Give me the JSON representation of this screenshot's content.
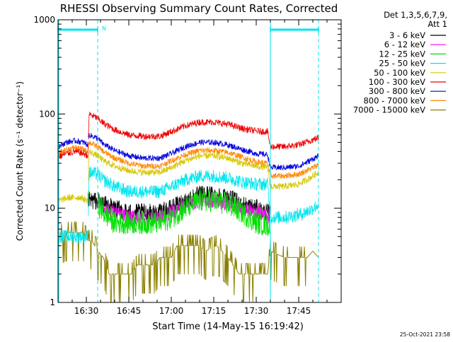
{
  "chart_data": {
    "type": "line",
    "title": "RHESSI Observing Summary Count Rates, Corrected",
    "xlabel": "Start Time (14-May-15 16:19:42)",
    "ylabel": "Corrected Count Rate (s⁻¹ detector⁻¹)",
    "yscale": "log",
    "ylim": [
      1,
      1000
    ],
    "xlim_minutes_after_1620": [
      0,
      100
    ],
    "x_ticks": [
      {
        "label": "16:30",
        "min": 10
      },
      {
        "label": "16:45",
        "min": 25
      },
      {
        "label": "17:00",
        "min": 40
      },
      {
        "label": "17:15",
        "min": 55
      },
      {
        "label": "17:30",
        "min": 70
      },
      {
        "label": "17:45",
        "min": 85
      }
    ],
    "y_ticks": [
      {
        "label": "1",
        "value": 1
      },
      {
        "label": "10",
        "value": 10
      },
      {
        "label": "100",
        "value": 100
      },
      {
        "label": "1000",
        "value": 1000
      }
    ],
    "legend_header": [
      "Det 1,3,5,6,7,9,",
      "Att 1"
    ],
    "legend_position": "top-right, outside plot",
    "timestamp": "25-Oct-2021 23:58",
    "night_marker": "N",
    "night_intervals_min": [
      [
        -1,
        14
      ],
      [
        75,
        92
      ]
    ],
    "vertical_markers_min": [
      {
        "t": 14,
        "style": "dashed"
      },
      {
        "t": 75,
        "style": "solid"
      },
      {
        "t": 92,
        "style": "dashed"
      }
    ],
    "series": [
      {
        "name": "3 - 6 keV",
        "color": "#000000",
        "points": [
          [
            10.5,
            12
          ],
          [
            14,
            12
          ],
          [
            16,
            11
          ],
          [
            20,
            10
          ],
          [
            25,
            9
          ],
          [
            30,
            9
          ],
          [
            36,
            9
          ],
          [
            40,
            10
          ],
          [
            45,
            12
          ],
          [
            50,
            14
          ],
          [
            55,
            14
          ],
          [
            60,
            13
          ],
          [
            65,
            11
          ],
          [
            70,
            10
          ],
          [
            73,
            9
          ],
          [
            75,
            9
          ]
        ]
      },
      {
        "name": "6 - 12 keV",
        "color": "#ff00ff",
        "points": [
          [
            14,
            12
          ],
          [
            16,
            10
          ],
          [
            20,
            9
          ],
          [
            25,
            8
          ],
          [
            30,
            8
          ],
          [
            36,
            8
          ],
          [
            40,
            9
          ],
          [
            45,
            11
          ],
          [
            50,
            12
          ],
          [
            55,
            12
          ],
          [
            60,
            11
          ],
          [
            65,
            10
          ],
          [
            70,
            9
          ],
          [
            75,
            8
          ]
        ]
      },
      {
        "name": "12 - 25 keV",
        "color": "#00e000",
        "points": [
          [
            14,
            11
          ],
          [
            16,
            9
          ],
          [
            20,
            7
          ],
          [
            25,
            7
          ],
          [
            30,
            7
          ],
          [
            36,
            7
          ],
          [
            40,
            8
          ],
          [
            45,
            10
          ],
          [
            50,
            12
          ],
          [
            55,
            12
          ],
          [
            60,
            11
          ],
          [
            65,
            9
          ],
          [
            70,
            7
          ],
          [
            75,
            6.5
          ]
        ]
      },
      {
        "name": "25 - 50 keV",
        "color": "#00e5ee",
        "points": [
          [
            0,
            5
          ],
          [
            3,
            5
          ],
          [
            6,
            5
          ],
          [
            9,
            5
          ],
          [
            10.5,
            5
          ],
          [
            11,
            24
          ],
          [
            14,
            23
          ],
          [
            16,
            20
          ],
          [
            20,
            17
          ],
          [
            25,
            15
          ],
          [
            30,
            15
          ],
          [
            36,
            15
          ],
          [
            40,
            17
          ],
          [
            45,
            20
          ],
          [
            50,
            22
          ],
          [
            55,
            22
          ],
          [
            60,
            21
          ],
          [
            65,
            19
          ],
          [
            70,
            18
          ],
          [
            74,
            18
          ],
          [
            75,
            8
          ],
          [
            80,
            8
          ],
          [
            85,
            8.5
          ],
          [
            89,
            9.5
          ],
          [
            92,
            11
          ]
        ]
      },
      {
        "name": "50 - 100 keV",
        "color": "#d4c800",
        "points": [
          [
            0,
            12
          ],
          [
            4,
            13
          ],
          [
            8,
            13
          ],
          [
            10.5,
            12
          ],
          [
            11,
            40
          ],
          [
            14,
            36
          ],
          [
            16,
            32
          ],
          [
            20,
            28
          ],
          [
            25,
            25
          ],
          [
            30,
            24
          ],
          [
            36,
            24
          ],
          [
            40,
            27
          ],
          [
            45,
            32
          ],
          [
            50,
            36
          ],
          [
            55,
            36
          ],
          [
            60,
            34
          ],
          [
            65,
            30
          ],
          [
            70,
            28
          ],
          [
            74,
            27
          ],
          [
            75,
            17
          ],
          [
            80,
            17
          ],
          [
            85,
            18
          ],
          [
            89,
            21
          ],
          [
            92,
            24
          ]
        ]
      },
      {
        "name": "100 - 300 keV",
        "color": "#ee0000",
        "points": [
          [
            0,
            35
          ],
          [
            3,
            38
          ],
          [
            6,
            40
          ],
          [
            9,
            38
          ],
          [
            10.5,
            36
          ],
          [
            11,
            100
          ],
          [
            14,
            90
          ],
          [
            16,
            80
          ],
          [
            20,
            68
          ],
          [
            25,
            60
          ],
          [
            30,
            58
          ],
          [
            36,
            58
          ],
          [
            40,
            65
          ],
          [
            45,
            75
          ],
          [
            50,
            82
          ],
          [
            55,
            82
          ],
          [
            60,
            78
          ],
          [
            65,
            70
          ],
          [
            70,
            66
          ],
          [
            74,
            65
          ],
          [
            75,
            45
          ],
          [
            80,
            45
          ],
          [
            85,
            47
          ],
          [
            89,
            52
          ],
          [
            92,
            56
          ]
        ]
      },
      {
        "name": "300 - 800 keV",
        "color": "#0000dd",
        "points": [
          [
            0,
            45
          ],
          [
            3,
            50
          ],
          [
            6,
            52
          ],
          [
            9,
            50
          ],
          [
            10.5,
            47
          ],
          [
            11,
            60
          ],
          [
            14,
            55
          ],
          [
            16,
            48
          ],
          [
            20,
            41
          ],
          [
            25,
            36
          ],
          [
            30,
            34
          ],
          [
            36,
            34
          ],
          [
            40,
            38
          ],
          [
            45,
            45
          ],
          [
            50,
            50
          ],
          [
            55,
            50
          ],
          [
            60,
            47
          ],
          [
            65,
            42
          ],
          [
            70,
            38
          ],
          [
            74,
            37
          ],
          [
            75,
            27
          ],
          [
            80,
            27
          ],
          [
            85,
            28
          ],
          [
            89,
            32
          ],
          [
            92,
            36
          ]
        ]
      },
      {
        "name": "800 - 7000 keV",
        "color": "#ff8800",
        "points": [
          [
            0,
            38
          ],
          [
            3,
            42
          ],
          [
            6,
            44
          ],
          [
            9,
            42
          ],
          [
            10.5,
            40
          ],
          [
            11,
            50
          ],
          [
            14,
            45
          ],
          [
            16,
            40
          ],
          [
            20,
            34
          ],
          [
            25,
            30
          ],
          [
            30,
            28
          ],
          [
            36,
            28
          ],
          [
            40,
            32
          ],
          [
            45,
            37
          ],
          [
            50,
            41
          ],
          [
            55,
            41
          ],
          [
            60,
            39
          ],
          [
            65,
            35
          ],
          [
            70,
            31
          ],
          [
            74,
            30
          ],
          [
            75,
            22
          ],
          [
            80,
            22
          ],
          [
            85,
            23
          ],
          [
            89,
            26
          ],
          [
            92,
            29
          ]
        ]
      },
      {
        "name": "7000 - 15000 keV",
        "color": "#8b8000",
        "points": [
          [
            0,
            5
          ],
          [
            3,
            5.5
          ],
          [
            6,
            5.5
          ],
          [
            9,
            5.5
          ],
          [
            10.5,
            4.5
          ],
          [
            12,
            4.5
          ],
          [
            14,
            3.5
          ],
          [
            16,
            3
          ],
          [
            18,
            2
          ],
          [
            20,
            2
          ],
          [
            24,
            2
          ],
          [
            26,
            2
          ],
          [
            28,
            2.5
          ],
          [
            30,
            2.5
          ],
          [
            34,
            2.5
          ],
          [
            36,
            3
          ],
          [
            40,
            3
          ],
          [
            42,
            4
          ],
          [
            50,
            4
          ],
          [
            52,
            3.5
          ],
          [
            56,
            4
          ],
          [
            58,
            3.5
          ],
          [
            60,
            3
          ],
          [
            64,
            2
          ],
          [
            70,
            2
          ],
          [
            74,
            2
          ],
          [
            75,
            3.5
          ],
          [
            80,
            3
          ],
          [
            85,
            3
          ],
          [
            88,
            3
          ],
          [
            90,
            3.5
          ],
          [
            92,
            3
          ]
        ]
      }
    ]
  }
}
